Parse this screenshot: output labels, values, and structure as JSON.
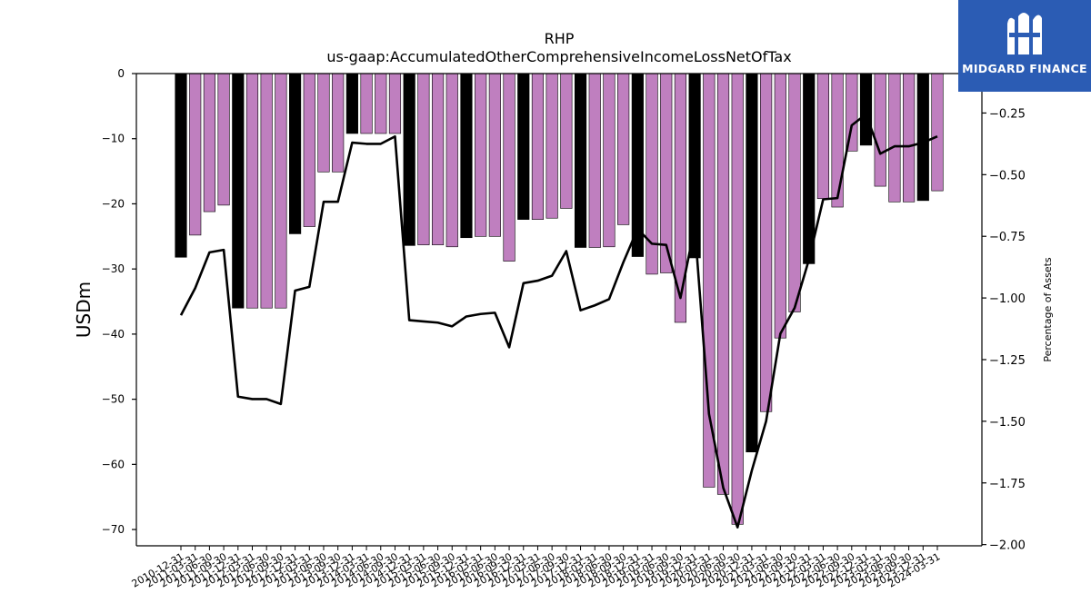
{
  "chart_data": {
    "type": "bar",
    "title": "RHP",
    "subtitle": "us-gaap:AccumulatedOtherComprehensiveIncomeLossNetOfTax",
    "ylabel": "USDm",
    "ylabel_right": "Percentage of Assets",
    "ylim": [
      -72.5,
      0
    ],
    "ylim_right": [
      -2.005,
      -0.09
    ],
    "yticks": [
      0,
      -10,
      -20,
      -30,
      -40,
      -50,
      -60,
      -70
    ],
    "yticks_right": [
      -0.25,
      -0.5,
      -0.75,
      -1.0,
      -1.25,
      -1.5,
      -1.75,
      -2.0
    ],
    "ytick_labels": [
      "0",
      "−10",
      "−20",
      "−30",
      "−40",
      "−50",
      "−60",
      "−70"
    ],
    "ytick_labels_right": [
      "−0.25",
      "−0.50",
      "−0.75",
      "−1.00",
      "−1.25",
      "−1.50",
      "−1.75",
      "−2.00"
    ],
    "categories": [
      "2010-12-31",
      "2011-03-31",
      "2011-06-30",
      "2011-09-30",
      "2011-12-31",
      "2012-03-31",
      "2012-06-30",
      "2012-09-30",
      "2012-12-31",
      "2013-03-31",
      "2013-06-30",
      "2013-09-30",
      "2013-12-31",
      "2014-03-31",
      "2014-06-30",
      "2014-09-30",
      "2014-12-31",
      "2015-03-31",
      "2015-06-30",
      "2015-09-30",
      "2015-12-31",
      "2016-03-31",
      "2016-06-30",
      "2016-09-30",
      "2016-12-31",
      "2017-03-31",
      "2017-06-30",
      "2017-09-30",
      "2017-12-31",
      "2018-03-31",
      "2018-06-30",
      "2018-09-30",
      "2018-12-31",
      "2019-03-31",
      "2019-06-30",
      "2019-09-30",
      "2019-12-31",
      "2020-03-31",
      "2020-06-30",
      "2020-09-30",
      "2020-12-31",
      "2021-03-31",
      "2021-06-30",
      "2021-09-30",
      "2021-12-31",
      "2022-03-31",
      "2022-06-30",
      "2022-09-30",
      "2022-12-31",
      "2023-03-31",
      "2023-06-30",
      "2023-09-30",
      "2023-12-31",
      "2024-03-31"
    ],
    "series": [
      {
        "values": [
          -28.2,
          -24.8,
          -21.2,
          -20.2,
          -36.0,
          -36.0,
          -36.0,
          -36.0,
          -24.6,
          -23.5,
          -15.1,
          -15.1,
          -9.2,
          -9.2,
          -9.2,
          -9.2,
          -26.4,
          -26.3,
          -26.3,
          -26.6,
          -25.2,
          -25.0,
          -25.0,
          -28.8,
          -22.4,
          -22.4,
          -22.2,
          -20.7,
          -26.7,
          -26.7,
          -26.6,
          -23.2,
          -28.1,
          -30.8,
          -30.6,
          -38.2,
          -28.3,
          -63.5,
          -64.6,
          -69.2,
          -58.1,
          -51.9,
          -40.6,
          -36.6,
          -29.2,
          -19.2,
          -20.5,
          -11.9,
          -11.0,
          -17.3,
          -19.7,
          -19.7,
          -19.5,
          -18.0
        ]
      },
      {
        "values": [
          -1.07,
          -0.96,
          -0.815,
          -0.805,
          -1.4,
          -1.41,
          -1.41,
          -1.43,
          -0.97,
          -0.955,
          -0.61,
          -0.61,
          -0.37,
          -0.375,
          -0.375,
          -0.345,
          -1.09,
          -1.095,
          -1.1,
          -1.115,
          -1.075,
          -1.065,
          -1.06,
          -1.2,
          -0.94,
          -0.93,
          -0.91,
          -0.81,
          -1.05,
          -1.03,
          -1.005,
          -0.855,
          -0.72,
          -0.78,
          -0.785,
          -1.0,
          -0.71,
          -1.47,
          -1.77,
          -1.93,
          -1.7,
          -1.5,
          -1.145,
          -1.04,
          -0.845,
          -0.6,
          -0.595,
          -0.3,
          -0.255,
          -0.415,
          -0.385,
          -0.385,
          -0.37,
          -0.345
        ]
      }
    ],
    "highlighted_quarter": "12-31",
    "colors": {
      "bar": "#bf7fbf",
      "bar_highlight": "#000000",
      "line": "#000000",
      "logo_bg": "#2b5cb4"
    }
  },
  "logo": {
    "text": "MIDGARD FINANCE",
    "icon": "midgard-logo-icon"
  }
}
